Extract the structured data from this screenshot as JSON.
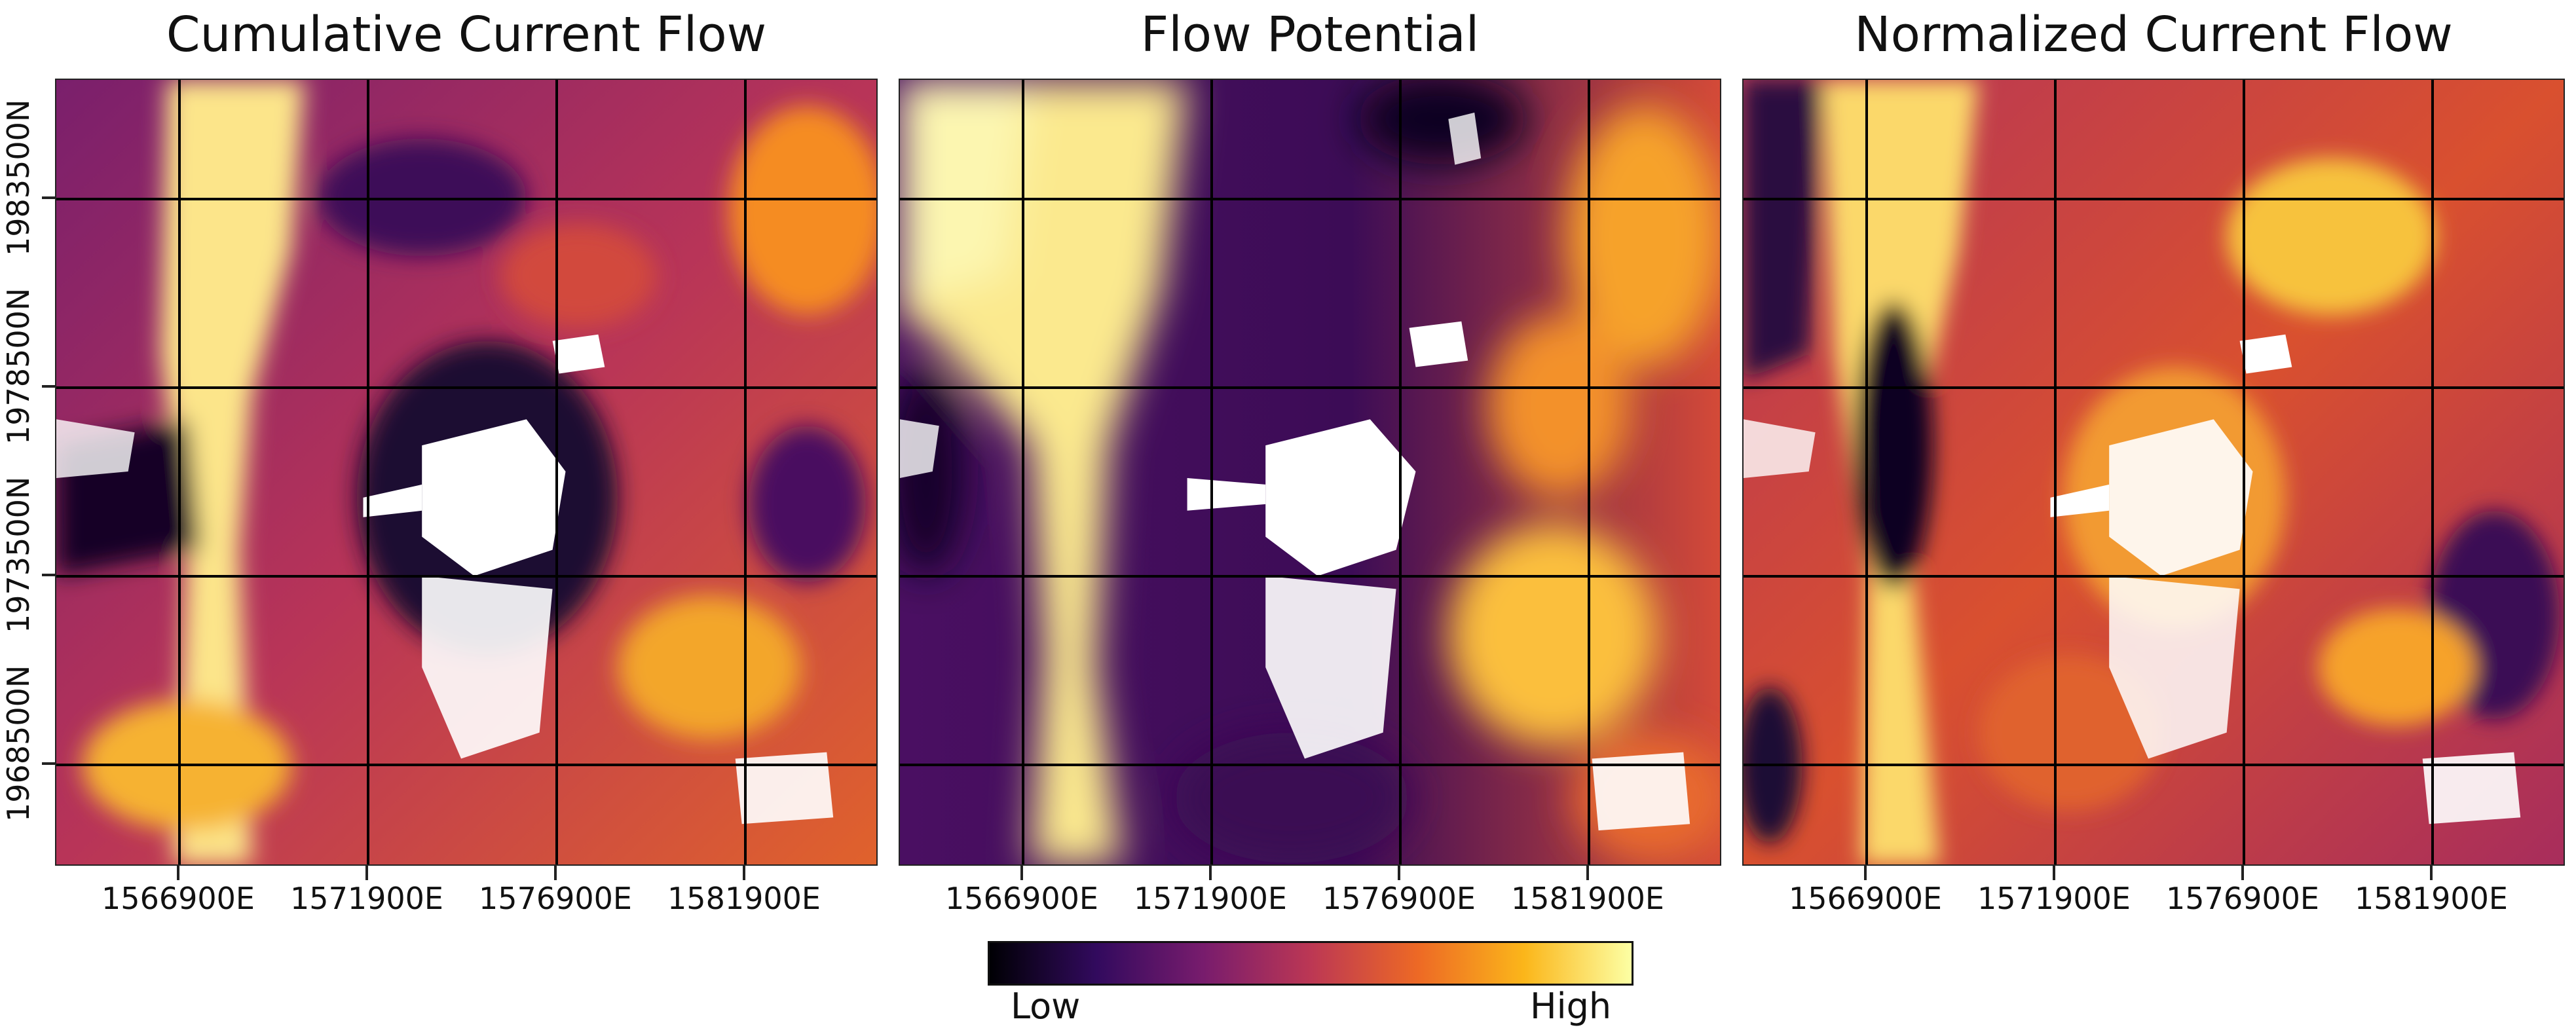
{
  "panels": [
    {
      "title": "Cumulative Current Flow",
      "layer": "cumulative-current-flow"
    },
    {
      "title": "Flow Potential",
      "layer": "flow-potential"
    },
    {
      "title": "Normalized Current Flow",
      "layer": "normalized-current-flow"
    }
  ],
  "axes": {
    "x_tick_labels": [
      "1566900E",
      "1571900E",
      "1576900E",
      "1581900E"
    ],
    "y_tick_labels": [
      "1983500N",
      "1978500N",
      "1973500N",
      "1968500N"
    ]
  },
  "legend": {
    "low_label": "Low",
    "high_label": "High",
    "colormap": [
      "#000004",
      "#320a5e",
      "#781c6d",
      "#bc3754",
      "#ed6925",
      "#fbb61a",
      "#fcffa4"
    ]
  },
  "colors": {
    "urban_mask": "#ffffff",
    "grid": "#000000"
  }
}
